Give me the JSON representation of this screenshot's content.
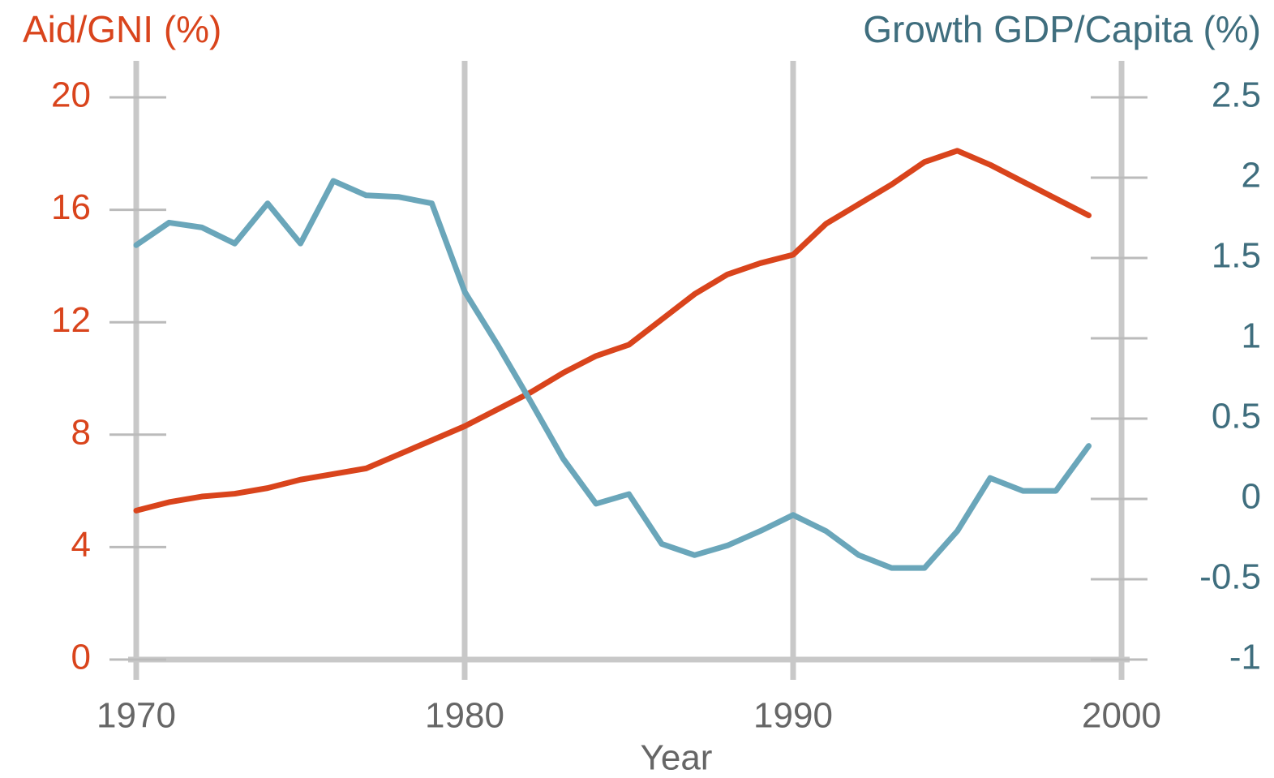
{
  "chart_data": {
    "type": "line",
    "y_label": "Aid/GNI (%)",
    "y2_label": "Growth GDP/Capita (%)",
    "x_label": "Year",
    "x": [
      1970,
      1971,
      1972,
      1973,
      1974,
      1975,
      1976,
      1977,
      1978,
      1979,
      1980,
      1981,
      1982,
      1983,
      1984,
      1985,
      1986,
      1987,
      1988,
      1989,
      1990,
      1991,
      1992,
      1993,
      1994,
      1995,
      1996,
      1997,
      1998,
      1999
    ],
    "series": [
      {
        "name": "Aid/GNI (%)",
        "color": "#d9441c",
        "axis": "y",
        "values": [
          5.3,
          5.6,
          5.8,
          5.9,
          6.1,
          6.4,
          6.6,
          6.8,
          7.3,
          7.8,
          8.3,
          8.9,
          9.5,
          10.2,
          10.8,
          11.2,
          12.1,
          13.0,
          13.7,
          14.1,
          14.4,
          15.5,
          16.2,
          16.9,
          17.7,
          18.1,
          17.6,
          17.0,
          16.4,
          15.8
        ]
      },
      {
        "name": "Growth GDP/Capita (%)",
        "color": "#6aa6ba",
        "axis": "y2",
        "values": [
          1.58,
          1.72,
          1.69,
          1.59,
          1.84,
          1.59,
          1.98,
          1.89,
          1.88,
          1.84,
          1.29,
          0.96,
          0.61,
          0.25,
          -0.03,
          0.03,
          -0.28,
          -0.35,
          -0.29,
          -0.2,
          -0.1,
          -0.2,
          -0.35,
          -0.43,
          -0.43,
          -0.2,
          0.13,
          0.05,
          0.05,
          0.33
        ]
      }
    ],
    "xlim": [
      1970,
      2000
    ],
    "xticks": [
      1970,
      1980,
      1990,
      2000
    ],
    "ylim": [
      0,
      20
    ],
    "yticks": [
      0,
      4,
      8,
      12,
      16,
      20
    ],
    "y2lim": [
      -1,
      2.5
    ],
    "y2ticks": [
      -1,
      -0.5,
      0,
      0.5,
      1,
      1.5,
      2,
      2.5
    ],
    "y_color": "#d9441c",
    "y2_color": "#3f6e7e",
    "grid": true
  }
}
